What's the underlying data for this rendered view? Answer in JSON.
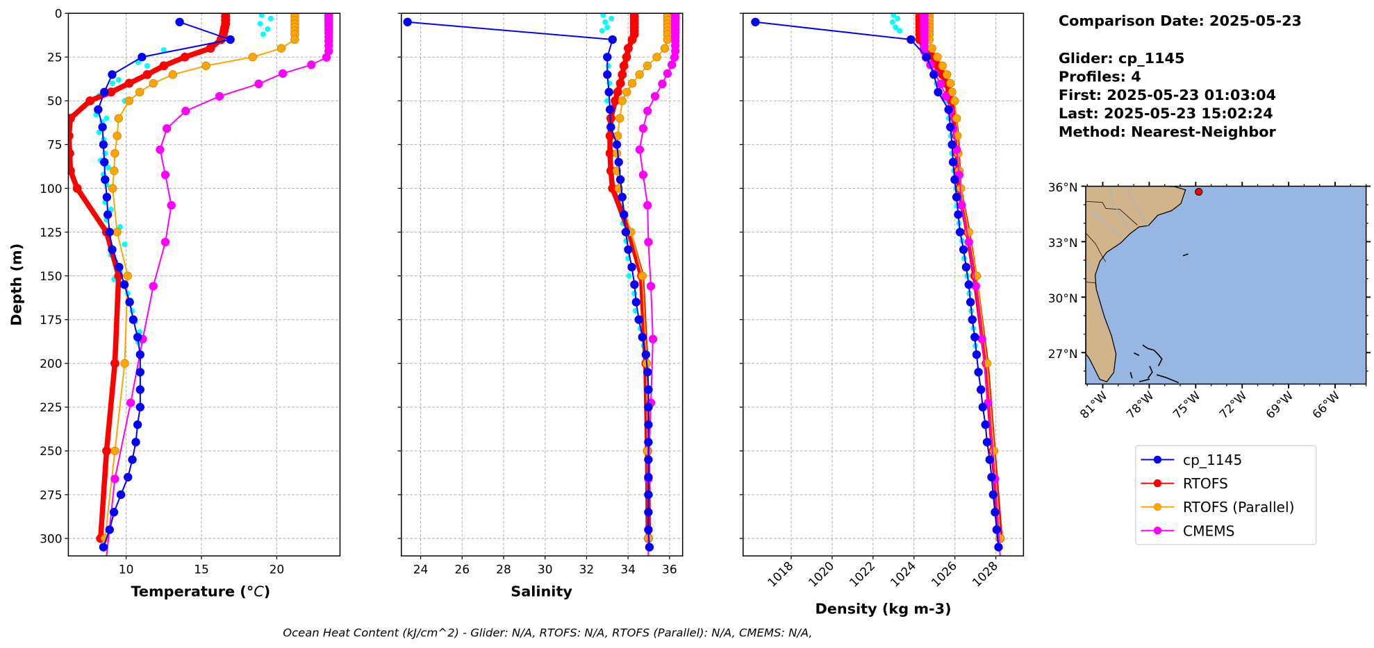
{
  "info": {
    "comparison_date": "Comparison Date: 2025-05-23",
    "glider": "Glider: cp_1145",
    "profiles": "Profiles: 4",
    "first": "First: 2025-05-23 01:03:04",
    "last": "Last: 2025-05-23 15:02:24",
    "method": "Method: Nearest-Neighbor"
  },
  "footer": "Ocean Heat Content (kJ/cm^2) - Glider: N/A,  RTOFS: N/A,  RTOFS (Parallel): N/A,  CMEMS: N/A,",
  "legend": [
    {
      "label": "cp_1145",
      "color": "#0000ff"
    },
    {
      "label": "RTOFS",
      "color": "#ff0000"
    },
    {
      "label": "RTOFS (Parallel)",
      "color": "#ffa500"
    },
    {
      "label": "CMEMS",
      "color": "#ff00ff"
    }
  ],
  "map": {
    "lat_ticks": [
      36,
      33,
      30,
      27
    ],
    "lat_labels": [
      "36°N",
      "33°N",
      "30°N",
      "27°N"
    ],
    "lon_ticks": [
      -81,
      -78,
      -75,
      -72,
      -69,
      -66
    ],
    "lon_labels": [
      "81°W",
      "78°W",
      "75°W",
      "72°W",
      "69°W",
      "66°W"
    ],
    "lon_range": [
      -82.1,
      -64.0
    ],
    "lat_range": [
      25.3,
      36.0
    ],
    "glider_position": {
      "lon": -74.8,
      "lat": 35.7
    },
    "land_color": "#d2b48c",
    "ocean_color": "#97b6e1"
  },
  "chart_data": [
    {
      "type": "line",
      "id": "temperature",
      "xlabel": "Temperature (°C)",
      "ylabel": "Depth (m)",
      "xlim": [
        6.16,
        24.2
      ],
      "ylim": [
        310,
        0
      ],
      "xticks": [
        10,
        15,
        20
      ],
      "yticks": [
        0,
        25,
        50,
        75,
        100,
        125,
        150,
        175,
        200,
        225,
        250,
        275,
        300
      ],
      "grid": true,
      "raw": {
        "name": "cp_1145 raw",
        "color": "#00ffff",
        "depth": [
          1,
          3,
          6,
          9,
          12,
          21,
          28,
          30,
          38,
          40,
          47,
          50,
          58,
          60,
          62,
          68,
          72,
          80,
          84,
          88,
          92,
          98,
          108,
          112,
          118,
          122,
          128,
          132,
          138,
          142,
          148,
          152,
          160,
          164,
          170,
          176,
          182,
          188
        ],
        "values": [
          19.0,
          19.6,
          18.9,
          19.4,
          19.1,
          12.5,
          10.8,
          11.4,
          9.5,
          9.1,
          8.2,
          9.9,
          8.0,
          8.7,
          8.4,
          8.2,
          8.5,
          8.6,
          8.3,
          8.8,
          8.5,
          8.7,
          8.6,
          9.0,
          8.7,
          9.6,
          8.8,
          9.9,
          9.0,
          9.3,
          9.6,
          9.2,
          10.1,
          10.3,
          10.4,
          10.6,
          10.9,
          10.8
        ]
      },
      "series": [
        {
          "name": "cp_1145",
          "color": "#0000ff",
          "depth": [
            5,
            15,
            25,
            35,
            45,
            55,
            65,
            75,
            85,
            95,
            105,
            115,
            125,
            135,
            145,
            155,
            165,
            175,
            185,
            195,
            205,
            215,
            225,
            235,
            245,
            255,
            265,
            275,
            285,
            295,
            305
          ],
          "values": [
            13.55,
            16.92,
            11.05,
            9.07,
            8.55,
            8.14,
            8.43,
            8.49,
            8.55,
            8.6,
            8.72,
            8.78,
            8.9,
            9.07,
            9.53,
            9.88,
            10.23,
            10.47,
            10.76,
            10.93,
            10.93,
            10.93,
            10.93,
            10.76,
            10.64,
            10.41,
            10.12,
            9.65,
            9.19,
            8.9,
            8.49
          ]
        },
        {
          "name": "RTOFS",
          "color": "#ff0000",
          "depth": [
            0,
            2,
            4,
            6,
            8,
            10,
            12,
            15,
            20,
            25,
            30,
            35,
            40,
            45,
            50,
            60,
            70,
            80,
            90,
            100,
            125,
            150,
            200,
            250,
            300
          ],
          "values": [
            16.6,
            16.6,
            16.6,
            16.6,
            16.55,
            16.5,
            16.45,
            16.3,
            15.6,
            13.9,
            12.5,
            11.4,
            10.2,
            9.0,
            7.6,
            6.3,
            6.2,
            6.25,
            6.3,
            6.75,
            8.7,
            9.5,
            9.25,
            8.7,
            8.3
          ]
        },
        {
          "name": "RTOFS (Parallel)",
          "color": "#ffa500",
          "depth": [
            0,
            2,
            4,
            6,
            8,
            10,
            12,
            15,
            20,
            25,
            30,
            35,
            40,
            45,
            50,
            60,
            70,
            80,
            90,
            100,
            125,
            150,
            200,
            250,
            300
          ],
          "values": [
            21.2,
            21.2,
            21.2,
            21.2,
            21.2,
            21.2,
            21.2,
            21.2,
            20.3,
            18.4,
            15.3,
            13.1,
            11.8,
            10.9,
            10.2,
            9.5,
            9.4,
            9.25,
            9.2,
            9.1,
            9.4,
            10.1,
            9.9,
            9.25,
            8.6
          ]
        },
        {
          "name": "CMEMS",
          "color": "#ff00ff",
          "depth": [
            0.5,
            1.5,
            2.6,
            3.8,
            5.1,
            6.4,
            7.9,
            9.6,
            11.4,
            13.5,
            15.8,
            18.5,
            21.6,
            25.2,
            29.4,
            34.4,
            40.3,
            47.4,
            55.8,
            65.8,
            77.9,
            92.3,
            109.7,
            130.7,
            155.9,
            186.1,
            222.5,
            266.0,
            318.1
          ],
          "values": [
            23.45,
            23.45,
            23.45,
            23.45,
            23.45,
            23.45,
            23.45,
            23.45,
            23.45,
            23.45,
            23.45,
            23.45,
            23.45,
            23.3,
            22.3,
            20.4,
            18.8,
            16.2,
            13.95,
            12.7,
            12.25,
            12.6,
            13.0,
            12.6,
            11.8,
            11.1,
            10.3,
            9.25,
            8.6
          ]
        }
      ]
    },
    {
      "type": "line",
      "id": "salinity",
      "xlabel": "Salinity",
      "xlim": [
        23.07,
        36.63
      ],
      "ylim": [
        310,
        0
      ],
      "xticks": [
        24,
        26,
        28,
        30,
        32,
        34,
        36
      ],
      "grid": true,
      "raw": {
        "name": "cp_1145 raw",
        "color": "#00ffff",
        "depth": [
          1,
          3,
          5,
          8,
          10,
          30,
          40,
          50,
          60,
          70,
          80,
          90,
          100,
          110,
          120,
          130,
          140,
          150,
          160,
          170,
          180,
          190
        ],
        "values": [
          32.8,
          33.2,
          32.9,
          33.0,
          32.75,
          33.05,
          33.1,
          33.0,
          33.15,
          33.3,
          33.5,
          33.45,
          33.6,
          33.7,
          33.75,
          33.9,
          34.0,
          34.05,
          34.3,
          34.35,
          34.6,
          34.75
        ]
      },
      "series": [
        {
          "name": "cp_1145",
          "color": "#0000ff",
          "depth": [
            5,
            15,
            25,
            35,
            45,
            55,
            65,
            75,
            85,
            95,
            105,
            115,
            125,
            135,
            145,
            155,
            165,
            175,
            185,
            195,
            205,
            215,
            225,
            235,
            245,
            255,
            265,
            275,
            285,
            295,
            305
          ],
          "values": [
            23.37,
            33.25,
            33.0,
            33.0,
            33.08,
            33.13,
            33.17,
            33.46,
            33.55,
            33.63,
            33.72,
            33.8,
            33.89,
            34.01,
            34.18,
            34.31,
            34.39,
            34.52,
            34.69,
            34.86,
            34.94,
            34.98,
            34.98,
            34.98,
            34.98,
            34.98,
            34.98,
            34.98,
            34.98,
            34.98,
            35.03
          ]
        },
        {
          "name": "RTOFS",
          "color": "#ff0000",
          "depth": [
            0,
            2,
            4,
            6,
            8,
            10,
            12,
            15,
            20,
            25,
            30,
            35,
            40,
            45,
            50,
            60,
            70,
            80,
            90,
            100,
            125,
            150,
            200,
            250,
            300
          ],
          "values": [
            34.3,
            34.3,
            34.3,
            34.3,
            34.3,
            34.3,
            34.3,
            34.2,
            34.01,
            33.93,
            33.8,
            33.72,
            33.63,
            33.5,
            33.38,
            33.17,
            33.13,
            33.13,
            33.17,
            33.25,
            34.05,
            34.65,
            34.86,
            34.94,
            34.98
          ]
        },
        {
          "name": "RTOFS (Parallel)",
          "color": "#ffa500",
          "depth": [
            0,
            2,
            4,
            6,
            8,
            10,
            12,
            15,
            20,
            25,
            30,
            35,
            40,
            45,
            50,
            60,
            70,
            80,
            90,
            100,
            125,
            150,
            200,
            250,
            300
          ],
          "values": [
            35.9,
            35.9,
            35.9,
            35.9,
            35.9,
            35.9,
            35.9,
            35.9,
            35.77,
            35.39,
            34.93,
            34.55,
            34.2,
            33.94,
            33.72,
            33.6,
            33.5,
            33.46,
            33.46,
            33.55,
            34.14,
            34.69,
            34.9,
            34.94,
            34.98
          ]
        },
        {
          "name": "CMEMS",
          "color": "#ff00ff",
          "depth": [
            0.5,
            1.5,
            2.6,
            3.8,
            5.1,
            6.4,
            7.9,
            9.6,
            11.4,
            13.5,
            15.8,
            18.5,
            21.6,
            25.2,
            29.4,
            34.4,
            40.3,
            47.4,
            55.8,
            65.8,
            77.9,
            92.3,
            109.7,
            130.7,
            155.9,
            186.1,
            222.5,
            266.0,
            318.1
          ],
          "values": [
            36.28,
            36.28,
            36.28,
            36.28,
            36.28,
            36.28,
            36.28,
            36.28,
            36.28,
            36.28,
            36.28,
            36.28,
            36.28,
            36.24,
            36.11,
            35.9,
            35.65,
            35.3,
            34.94,
            34.73,
            34.56,
            34.73,
            34.94,
            34.98,
            35.1,
            35.2,
            35.1,
            34.98,
            34.98
          ]
        }
      ]
    },
    {
      "type": "line",
      "id": "density",
      "xlabel": "Density (kg m-3)",
      "xlim": [
        1015.65,
        1029.35
      ],
      "ylim": [
        310,
        0
      ],
      "xticks": [
        1018,
        1020,
        1022,
        1024,
        1026,
        1028
      ],
      "grid": true,
      "raw": {
        "name": "cp_1145 raw",
        "color": "#00ffff",
        "depth": [
          1,
          3,
          5,
          8,
          10,
          30,
          40,
          50,
          60,
          70,
          80,
          90,
          100,
          110,
          120,
          130,
          140,
          150,
          160,
          170,
          180,
          190
        ],
        "values": [
          1023.0,
          1023.2,
          1022.95,
          1023.1,
          1023.3,
          1024.9,
          1025.1,
          1025.6,
          1025.7,
          1025.8,
          1025.85,
          1025.95,
          1026.05,
          1026.1,
          1026.2,
          1026.35,
          1026.45,
          1026.6,
          1026.7,
          1026.8,
          1026.9,
          1027.0
        ]
      },
      "series": [
        {
          "name": "cp_1145",
          "color": "#0000ff",
          "depth": [
            5,
            15,
            25,
            35,
            45,
            55,
            65,
            75,
            85,
            95,
            105,
            115,
            125,
            135,
            145,
            155,
            165,
            175,
            185,
            195,
            205,
            215,
            225,
            235,
            245,
            255,
            265,
            275,
            285,
            295,
            305
          ],
          "values": [
            1016.25,
            1023.85,
            1024.62,
            1024.97,
            1025.18,
            1025.69,
            1025.78,
            1025.86,
            1025.91,
            1025.99,
            1026.08,
            1026.16,
            1026.25,
            1026.42,
            1026.55,
            1026.68,
            1026.76,
            1026.85,
            1026.97,
            1027.06,
            1027.15,
            1027.27,
            1027.36,
            1027.49,
            1027.57,
            1027.7,
            1027.79,
            1027.87,
            1027.96,
            1028.04,
            1028.13
          ]
        },
        {
          "name": "RTOFS",
          "color": "#ff0000",
          "depth": [
            0,
            2,
            4,
            6,
            8,
            10,
            12,
            15,
            20,
            25,
            30,
            35,
            40,
            45,
            50,
            60,
            70,
            80,
            90,
            100,
            125,
            150,
            200,
            250,
            300
          ],
          "values": [
            1024.28,
            1024.28,
            1024.28,
            1024.28,
            1024.28,
            1024.28,
            1024.28,
            1024.28,
            1024.5,
            1024.97,
            1025.18,
            1025.39,
            1025.56,
            1025.74,
            1025.86,
            1025.99,
            1026.08,
            1026.12,
            1026.16,
            1026.21,
            1026.63,
            1026.97,
            1027.53,
            1027.87,
            1028.21
          ]
        },
        {
          "name": "RTOFS (Parallel)",
          "color": "#ffa500",
          "depth": [
            0,
            2,
            4,
            6,
            8,
            10,
            12,
            15,
            20,
            25,
            30,
            35,
            40,
            45,
            50,
            60,
            70,
            80,
            90,
            100,
            125,
            150,
            200,
            250,
            300
          ],
          "values": [
            1024.75,
            1024.75,
            1024.75,
            1024.75,
            1024.75,
            1024.75,
            1024.75,
            1024.75,
            1024.88,
            1025.14,
            1025.39,
            1025.61,
            1025.78,
            1025.86,
            1025.99,
            1026.08,
            1026.12,
            1026.16,
            1026.21,
            1026.29,
            1026.68,
            1027.06,
            1027.57,
            1027.91,
            1028.21
          ]
        },
        {
          "name": "CMEMS",
          "color": "#ff00ff",
          "depth": [
            0.5,
            1.5,
            2.6,
            3.8,
            5.1,
            6.4,
            7.9,
            9.6,
            11.4,
            13.5,
            15.8,
            18.5,
            21.6,
            25.2,
            29.4,
            34.4,
            40.3,
            47.4,
            55.8,
            65.8,
            77.9,
            92.3,
            109.7,
            130.7,
            155.9,
            186.1,
            222.5,
            266.0,
            318.1
          ],
          "values": [
            1024.5,
            1024.5,
            1024.5,
            1024.5,
            1024.5,
            1024.5,
            1024.5,
            1024.5,
            1024.5,
            1024.5,
            1024.5,
            1024.5,
            1024.5,
            1024.58,
            1024.8,
            1025.01,
            1025.31,
            1025.56,
            1025.78,
            1025.91,
            1026.08,
            1026.21,
            1026.33,
            1026.68,
            1027.02,
            1027.32,
            1027.62,
            1027.96,
            1028.26
          ]
        }
      ]
    }
  ]
}
